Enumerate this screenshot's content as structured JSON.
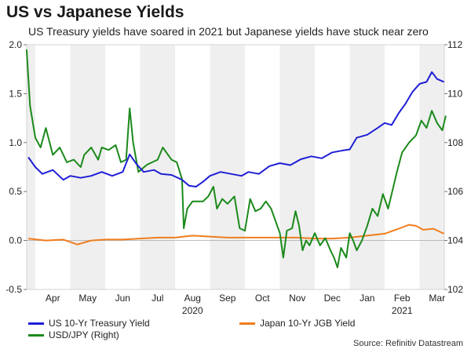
{
  "title": "US vs Japanese Yields",
  "subtitle": "US Treasury yields have soared in 2021 but Japanese yields have stuck near zero",
  "source": "Source: Refinitiv Datastream",
  "chart_data": {
    "type": "line",
    "x_labels": [
      "Apr",
      "May",
      "Jun",
      "Jul",
      "Aug",
      "Sep",
      "Oct",
      "Nov",
      "Dec",
      "Jan",
      "Feb",
      "Mar"
    ],
    "year_labels": [
      {
        "label": "2020",
        "at_month": 4.5
      },
      {
        "label": "2021",
        "at_month": 10.5
      }
    ],
    "y_left": {
      "min": -0.5,
      "max": 2.0,
      "ticks": [
        "2.0",
        "1.5",
        "1.0",
        "0.5",
        "0.0",
        "-0.5"
      ]
    },
    "y_right": {
      "min": 102,
      "max": 112,
      "ticks": [
        "112",
        "110",
        "108",
        "106",
        "104",
        "102"
      ]
    },
    "series": [
      {
        "name": "US 10-Yr Treasury Yield",
        "axis": "left",
        "color": "#1f1fd6",
        "points": [
          [
            -0.2,
            0.85
          ],
          [
            0,
            0.75
          ],
          [
            0.2,
            0.68
          ],
          [
            0.5,
            0.72
          ],
          [
            0.8,
            0.62
          ],
          [
            1.0,
            0.66
          ],
          [
            1.3,
            0.64
          ],
          [
            1.6,
            0.66
          ],
          [
            1.9,
            0.7
          ],
          [
            2.2,
            0.66
          ],
          [
            2.5,
            0.7
          ],
          [
            2.7,
            0.88
          ],
          [
            2.9,
            0.78
          ],
          [
            3.1,
            0.7
          ],
          [
            3.4,
            0.72
          ],
          [
            3.6,
            0.68
          ],
          [
            3.9,
            0.67
          ],
          [
            4.2,
            0.62
          ],
          [
            4.4,
            0.56
          ],
          [
            4.6,
            0.55
          ],
          [
            4.8,
            0.6
          ],
          [
            5.0,
            0.66
          ],
          [
            5.3,
            0.7
          ],
          [
            5.6,
            0.68
          ],
          [
            5.9,
            0.66
          ],
          [
            6.1,
            0.7
          ],
          [
            6.4,
            0.68
          ],
          [
            6.7,
            0.76
          ],
          [
            7.0,
            0.79
          ],
          [
            7.3,
            0.77
          ],
          [
            7.6,
            0.83
          ],
          [
            7.9,
            0.86
          ],
          [
            8.2,
            0.84
          ],
          [
            8.5,
            0.9
          ],
          [
            8.8,
            0.92
          ],
          [
            9.0,
            0.93
          ],
          [
            9.2,
            1.05
          ],
          [
            9.5,
            1.08
          ],
          [
            9.8,
            1.15
          ],
          [
            10.0,
            1.2
          ],
          [
            10.2,
            1.18
          ],
          [
            10.4,
            1.3
          ],
          [
            10.6,
            1.4
          ],
          [
            10.8,
            1.52
          ],
          [
            11.0,
            1.6
          ],
          [
            11.2,
            1.62
          ],
          [
            11.35,
            1.72
          ],
          [
            11.5,
            1.65
          ],
          [
            11.7,
            1.62
          ]
        ]
      },
      {
        "name": "Japan 10-Yr JGB Yield",
        "axis": "left",
        "color": "#f07d1e",
        "points": [
          [
            -0.2,
            0.02
          ],
          [
            0.3,
            0.0
          ],
          [
            0.8,
            0.01
          ],
          [
            1.2,
            -0.04
          ],
          [
            1.6,
            0.0
          ],
          [
            2.0,
            0.01
          ],
          [
            2.5,
            0.01
          ],
          [
            3.0,
            0.02
          ],
          [
            3.5,
            0.03
          ],
          [
            4.0,
            0.03
          ],
          [
            4.5,
            0.05
          ],
          [
            5.0,
            0.04
          ],
          [
            5.5,
            0.03
          ],
          [
            6.0,
            0.03
          ],
          [
            6.5,
            0.03
          ],
          [
            7.0,
            0.03
          ],
          [
            7.5,
            0.03
          ],
          [
            8.0,
            0.02
          ],
          [
            8.5,
            0.02
          ],
          [
            9.0,
            0.03
          ],
          [
            9.5,
            0.05
          ],
          [
            10.0,
            0.07
          ],
          [
            10.4,
            0.12
          ],
          [
            10.7,
            0.16
          ],
          [
            10.9,
            0.15
          ],
          [
            11.1,
            0.11
          ],
          [
            11.4,
            0.12
          ],
          [
            11.7,
            0.07
          ]
        ]
      },
      {
        "name": "USD/JPY (Right)",
        "axis": "right",
        "color": "#1b8a1b",
        "points": [
          [
            -0.25,
            111.8
          ],
          [
            -0.15,
            109.5
          ],
          [
            0,
            108.2
          ],
          [
            0.15,
            107.8
          ],
          [
            0.3,
            108.6
          ],
          [
            0.5,
            107.5
          ],
          [
            0.7,
            107.8
          ],
          [
            0.9,
            107.2
          ],
          [
            1.1,
            107.3
          ],
          [
            1.3,
            107.0
          ],
          [
            1.4,
            107.5
          ],
          [
            1.6,
            107.8
          ],
          [
            1.8,
            107.3
          ],
          [
            1.9,
            107.8
          ],
          [
            2.1,
            107.7
          ],
          [
            2.3,
            107.9
          ],
          [
            2.45,
            107.2
          ],
          [
            2.6,
            107.3
          ],
          [
            2.7,
            109.4
          ],
          [
            2.8,
            108.0
          ],
          [
            2.95,
            106.8
          ],
          [
            3.2,
            107.1
          ],
          [
            3.5,
            107.3
          ],
          [
            3.65,
            107.8
          ],
          [
            3.8,
            107.5
          ],
          [
            3.9,
            107.3
          ],
          [
            4.05,
            107.2
          ],
          [
            4.2,
            106.5
          ],
          [
            4.25,
            104.5
          ],
          [
            4.35,
            105.3
          ],
          [
            4.5,
            105.6
          ],
          [
            4.65,
            105.6
          ],
          [
            4.8,
            105.6
          ],
          [
            4.95,
            105.8
          ],
          [
            5.1,
            106.2
          ],
          [
            5.2,
            105.3
          ],
          [
            5.35,
            105.7
          ],
          [
            5.5,
            105.5
          ],
          [
            5.7,
            105.8
          ],
          [
            5.85,
            104.5
          ],
          [
            6.0,
            104.4
          ],
          [
            6.15,
            105.7
          ],
          [
            6.3,
            105.2
          ],
          [
            6.45,
            105.3
          ],
          [
            6.6,
            105.6
          ],
          [
            6.75,
            105.3
          ],
          [
            6.9,
            104.7
          ],
          [
            7.0,
            104.3
          ],
          [
            7.1,
            103.3
          ],
          [
            7.2,
            104.4
          ],
          [
            7.35,
            104.5
          ],
          [
            7.45,
            105.2
          ],
          [
            7.55,
            104.6
          ],
          [
            7.65,
            103.6
          ],
          [
            7.75,
            104.0
          ],
          [
            7.85,
            103.8
          ],
          [
            8.0,
            104.3
          ],
          [
            8.15,
            103.8
          ],
          [
            8.3,
            104.1
          ],
          [
            8.45,
            103.6
          ],
          [
            8.55,
            103.3
          ],
          [
            8.65,
            102.9
          ],
          [
            8.75,
            103.7
          ],
          [
            8.9,
            103.3
          ],
          [
            9.0,
            104.3
          ],
          [
            9.1,
            104.0
          ],
          [
            9.2,
            103.6
          ],
          [
            9.35,
            104.0
          ],
          [
            9.5,
            104.6
          ],
          [
            9.65,
            105.3
          ],
          [
            9.8,
            105.0
          ],
          [
            9.95,
            105.9
          ],
          [
            10.1,
            105.3
          ],
          [
            10.2,
            105.9
          ],
          [
            10.35,
            106.8
          ],
          [
            10.5,
            107.6
          ],
          [
            10.7,
            108.0
          ],
          [
            10.9,
            108.3
          ],
          [
            11.05,
            108.9
          ],
          [
            11.2,
            108.6
          ],
          [
            11.35,
            109.3
          ],
          [
            11.5,
            108.8
          ],
          [
            11.65,
            108.5
          ],
          [
            11.75,
            109.1
          ]
        ]
      }
    ]
  }
}
